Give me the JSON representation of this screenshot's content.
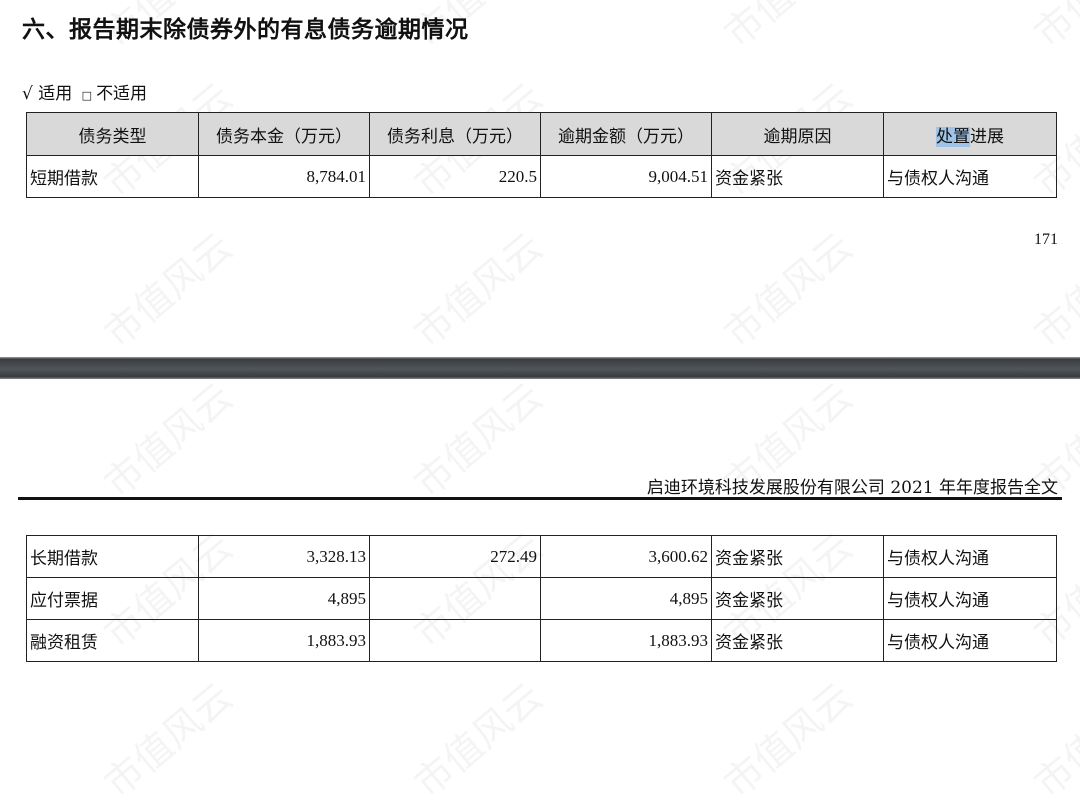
{
  "watermark": "市值风云",
  "title": "六、报告期末除债券外的有息债务逾期情况",
  "applicability": {
    "checked_mark": "√",
    "checked_label": "适用",
    "unchecked_mark": "□",
    "unchecked_label": "不适用"
  },
  "table": {
    "headers": [
      "债务类型",
      "债务本金（万元）",
      "债务利息（万元）",
      "逾期金额（万元）",
      "逾期原因",
      "进展"
    ],
    "header_last_highlight": "处置",
    "rows_page1": [
      [
        "短期借款",
        "8,784.01",
        "220.5",
        "9,004.51",
        "资金紧张",
        "与债权人沟通"
      ]
    ],
    "rows_page2": [
      [
        "长期借款",
        "3,328.13",
        "272.49",
        "3,600.62",
        "资金紧张",
        "与债权人沟通"
      ],
      [
        "应付票据",
        "4,895",
        "",
        "4,895",
        "资金紧张",
        "与债权人沟通"
      ],
      [
        "融资租赁",
        "1,883.93",
        "",
        "1,883.93",
        "资金紧张",
        "与债权人沟通"
      ]
    ]
  },
  "page_number": "171",
  "running_header": "启迪环境科技发展股份有限公司 2021 年年度报告全文"
}
